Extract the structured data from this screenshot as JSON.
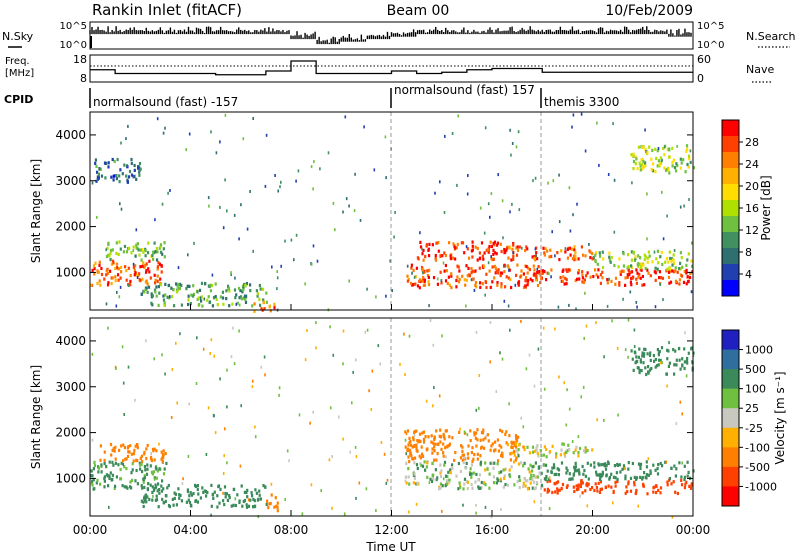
{
  "header": {
    "title": "Rankin Inlet (fitACF)",
    "beam": "Beam 00",
    "date": "10/Feb/2009"
  },
  "top_panels": {
    "nsky_label": "N.Sky",
    "nsearch_label": "N.Search",
    "freq_label": "Freq.",
    "freq_unit": "[MHz]",
    "nave_label": "Nave",
    "cpid_label": "CPID",
    "nsky_ticks": [
      "10^5",
      "10^0"
    ],
    "nsearch_ticks": [
      "10^5",
      "10^0"
    ],
    "freq_ticks": [
      "18",
      "8"
    ],
    "nave_ticks": [
      "60",
      "0"
    ]
  },
  "cpid_segments": [
    {
      "start_hour": 0.0,
      "label": "normalsound (fast) -157"
    },
    {
      "start_hour": 12.0,
      "label": "normalsound (fast) 157"
    },
    {
      "start_hour": 18.0,
      "label": "themis 3300"
    }
  ],
  "power_colorbar": {
    "label": "Power [dB]",
    "ticks": [
      "28",
      "24",
      "20",
      "16",
      "12",
      "8",
      "4"
    ],
    "colors": [
      "#ff0000",
      "#ff4000",
      "#ff8000",
      "#ffb000",
      "#ffdd00",
      "#b0e000",
      "#70c040",
      "#409060",
      "#2f6f6f",
      "#2040b0",
      "#0000ff"
    ]
  },
  "velocity_colorbar": {
    "label": "Velocity [m s⁻¹]",
    "ticks": [
      "1000",
      "500",
      "100",
      "25",
      "-25",
      "-100",
      "-500",
      "-1000"
    ],
    "colors": [
      "#2020c0",
      "#2f6f9f",
      "#3a8a5a",
      "#70c040",
      "#c8c8c0",
      "#ffb000",
      "#ff8000",
      "#ff4000",
      "#ff0000"
    ]
  },
  "axes": {
    "ylabel": "Slant Range [km]",
    "yticks": [
      "4000",
      "3000",
      "2000",
      "1000"
    ],
    "xticks": [
      "00:00",
      "04:00",
      "08:00",
      "12:00",
      "16:00",
      "20:00",
      "00:00"
    ],
    "xlabel": "Time UT"
  },
  "chart_data": [
    {
      "type": "line",
      "title": "N.Sky / N.Search",
      "x_label": "Time UT (hours)",
      "x": [
        0,
        0.5,
        1,
        2,
        3,
        4,
        5,
        6,
        7,
        8,
        9,
        10,
        11,
        12,
        13,
        14,
        15,
        16,
        17,
        18,
        19,
        20,
        21,
        22,
        23,
        24
      ],
      "series": [
        {
          "name": "N.Sky",
          "values": [
            1000.0,
            1000.0,
            1000.0,
            1000.0,
            1000.0,
            1000.0,
            1000.0,
            1000.0,
            1000.0,
            100,
            10,
            30,
            100,
            300,
            1000.0,
            1000.0,
            1000.0,
            1000.0,
            1000.0,
            1000.0,
            1000.0,
            1000.0,
            1000.0,
            1000.0,
            300,
            10000.0
          ]
        }
      ],
      "ylim": [
        1,
        100000
      ],
      "yscale": "log"
    },
    {
      "type": "line",
      "title": "Freq. / Nave",
      "x": [
        0,
        1,
        2,
        3,
        4,
        5,
        6,
        7,
        8,
        9,
        10,
        11,
        12,
        13,
        14,
        15,
        16,
        17,
        18,
        19,
        20,
        21,
        22,
        23,
        24
      ],
      "series": [
        {
          "name": "Freq. [MHz]",
          "values": [
            12.5,
            11,
            11,
            11,
            11,
            10.5,
            10.5,
            12,
            16,
            11,
            11,
            11,
            12,
            11,
            11.5,
            12.5,
            13,
            13,
            11.5,
            11.5,
            11.5,
            11.5,
            11.5,
            11.5,
            11.5
          ]
        }
      ],
      "ylim": [
        8,
        18
      ]
    },
    {
      "type": "heatmap",
      "title": "Power [dB]",
      "x_label": "Time UT",
      "y_label": "Slant Range [km]",
      "xlim": [
        0,
        24
      ],
      "ylim": [
        180,
        4500
      ],
      "zlim": [
        0,
        30
      ],
      "blobs": [
        {
          "t0": 0.0,
          "t1": 3.0,
          "r0": 750,
          "r1": 1300,
          "value": 26
        },
        {
          "t0": 0.5,
          "t1": 3.0,
          "r0": 1300,
          "r1": 1700,
          "value": 12
        },
        {
          "t0": 2.0,
          "t1": 7.0,
          "r0": 300,
          "r1": 800,
          "value": 10
        },
        {
          "t0": 6.5,
          "t1": 7.5,
          "r0": 180,
          "r1": 400,
          "value": 24
        },
        {
          "t0": 12.5,
          "t1": 18.0,
          "r0": 700,
          "r1": 1200,
          "value": 27
        },
        {
          "t0": 13.0,
          "t1": 17.0,
          "r0": 1300,
          "r1": 1700,
          "value": 28
        },
        {
          "t0": 16.5,
          "t1": 20.0,
          "r0": 1300,
          "r1": 1600,
          "value": 26
        },
        {
          "t0": 17.0,
          "t1": 24.0,
          "r0": 750,
          "r1": 1100,
          "value": 28
        },
        {
          "t0": 20.0,
          "t1": 24.0,
          "r0": 1100,
          "r1": 1500,
          "value": 14
        },
        {
          "t0": 21.5,
          "t1": 24.0,
          "r0": 3200,
          "r1": 3800,
          "value": 14
        },
        {
          "t0": 0.0,
          "t1": 2.0,
          "r0": 3000,
          "r1": 3500,
          "value": 6
        }
      ]
    },
    {
      "type": "heatmap",
      "title": "Velocity [m s⁻¹]",
      "x_label": "Time UT",
      "y_label": "Slant Range [km]",
      "xlim": [
        0,
        24
      ],
      "ylim": [
        180,
        4500
      ],
      "blobs": [
        {
          "t0": 0.0,
          "t1": 3.0,
          "r0": 800,
          "r1": 1400,
          "value": 150
        },
        {
          "t0": 0.3,
          "t1": 3.0,
          "r0": 1400,
          "r1": 1800,
          "value": -200
        },
        {
          "t0": 2.0,
          "t1": 7.0,
          "r0": 400,
          "r1": 900,
          "value": 300
        },
        {
          "t0": 7.0,
          "t1": 7.5,
          "r0": 300,
          "r1": 700,
          "value": -300
        },
        {
          "t0": 12.5,
          "t1": 17.0,
          "r0": 1400,
          "r1": 2100,
          "value": -400
        },
        {
          "t0": 12.5,
          "t1": 18.0,
          "r0": 800,
          "r1": 1400,
          "value": 50
        },
        {
          "t0": 16.5,
          "t1": 20.0,
          "r0": 1500,
          "r1": 1800,
          "value": 0
        },
        {
          "t0": 18.0,
          "t1": 24.0,
          "r0": 700,
          "r1": 1000,
          "value": -700
        },
        {
          "t0": 18.0,
          "t1": 24.0,
          "r0": 1000,
          "r1": 1400,
          "value": 300
        },
        {
          "t0": 21.5,
          "t1": 24.0,
          "r0": 3300,
          "r1": 3900,
          "value": 400
        }
      ]
    }
  ]
}
